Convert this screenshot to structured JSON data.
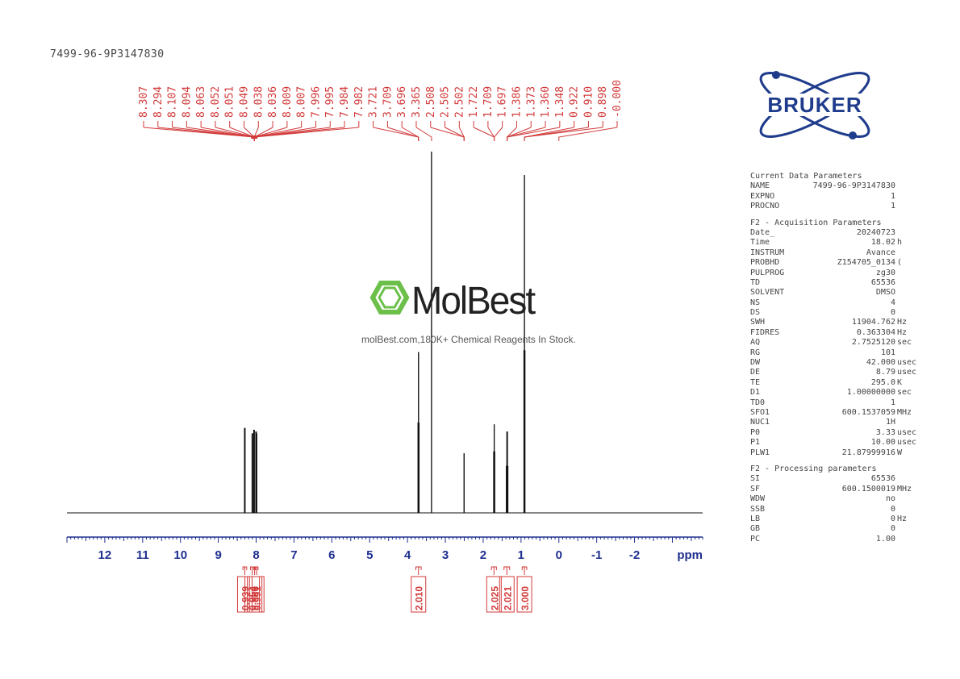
{
  "title": "7499-96-9P3147830",
  "watermark": {
    "brand": "MolBest",
    "tagline": "molBest.com,180K+ Chemical Reagents In Stock."
  },
  "logo": {
    "text": "BRUKER",
    "color": "#1f3c8c",
    "accent": "#2a4fa8"
  },
  "colors": {
    "peak_label": "#d23a3a",
    "axis": "#1f2f8f",
    "trace": "#111111"
  },
  "parameters": {
    "current": {
      "heading": "Current Data Parameters",
      "rows": [
        {
          "name": "NAME",
          "value": "7499-96-9P3147830",
          "unit": ""
        },
        {
          "name": "EXPNO",
          "value": "1",
          "unit": ""
        },
        {
          "name": "PROCNO",
          "value": "1",
          "unit": ""
        }
      ]
    },
    "acquisition": {
      "heading": "F2 - Acquisition Parameters",
      "rows": [
        {
          "name": "Date_",
          "value": "20240723",
          "unit": ""
        },
        {
          "name": "Time",
          "value": "18.02",
          "unit": "h"
        },
        {
          "name": "INSTRUM",
          "value": "Avance",
          "unit": ""
        },
        {
          "name": "PROBHD",
          "value": "Z154705_0134",
          "unit": "("
        },
        {
          "name": "PULPROG",
          "value": "zg30",
          "unit": ""
        },
        {
          "name": "TD",
          "value": "65536",
          "unit": ""
        },
        {
          "name": "SOLVENT",
          "value": "DMSO",
          "unit": ""
        },
        {
          "name": "NS",
          "value": "4",
          "unit": ""
        },
        {
          "name": "DS",
          "value": "0",
          "unit": ""
        },
        {
          "name": "SWH",
          "value": "11904.762",
          "unit": "Hz"
        },
        {
          "name": "FIDRES",
          "value": "0.363304",
          "unit": "Hz"
        },
        {
          "name": "AQ",
          "value": "2.7525120",
          "unit": "sec"
        },
        {
          "name": "RG",
          "value": "101",
          "unit": ""
        },
        {
          "name": "DW",
          "value": "42.000",
          "unit": "usec"
        },
        {
          "name": "DE",
          "value": "8.79",
          "unit": "usec"
        },
        {
          "name": "TE",
          "value": "295.0",
          "unit": "K"
        },
        {
          "name": "D1",
          "value": "1.00000000",
          "unit": "sec"
        },
        {
          "name": "TD0",
          "value": "1",
          "unit": ""
        },
        {
          "name": "SFO1",
          "value": "600.1537059",
          "unit": "MHz"
        },
        {
          "name": "NUC1",
          "value": "1H",
          "unit": ""
        },
        {
          "name": "P0",
          "value": "3.33",
          "unit": "usec"
        },
        {
          "name": "P1",
          "value": "10.00",
          "unit": "usec"
        },
        {
          "name": "PLW1",
          "value": "21.87999916",
          "unit": "W"
        }
      ]
    },
    "processing": {
      "heading": "F2 - Processing parameters",
      "rows": [
        {
          "name": "SI",
          "value": "65536",
          "unit": ""
        },
        {
          "name": "SF",
          "value": "600.1500019",
          "unit": "MHz"
        },
        {
          "name": "WDW",
          "value": "no",
          "unit": ""
        },
        {
          "name": "SSB",
          "value": "0",
          "unit": ""
        },
        {
          "name": "LB",
          "value": "0",
          "unit": "Hz"
        },
        {
          "name": "GB",
          "value": "0",
          "unit": ""
        },
        {
          "name": "PC",
          "value": "1.00",
          "unit": ""
        }
      ]
    }
  },
  "chart_data": {
    "type": "line",
    "title": "7499-96-9P3147830",
    "xlabel": "ppm",
    "xlim": [
      13.0,
      -3.8
    ],
    "x_ticks": [
      12,
      11,
      10,
      9,
      8,
      7,
      6,
      5,
      4,
      3,
      2,
      1,
      0,
      -1,
      -2
    ],
    "x_tick_labels": [
      "12",
      "11",
      "10",
      "9",
      "8",
      "7",
      "6",
      "5",
      "4",
      "3",
      "2",
      "1",
      "0",
      "-1",
      "-2"
    ],
    "ylim": [
      0,
      1.0
    ],
    "peak_labels": [
      "8.307",
      "8.294",
      "8.107",
      "8.094",
      "8.063",
      "8.052",
      "8.051",
      "8.049",
      "8.038",
      "8.036",
      "8.009",
      "8.007",
      "7.996",
      "7.995",
      "7.984",
      "7.982",
      "3.721",
      "3.709",
      "3.696",
      "3.365",
      "2.508",
      "2.505",
      "2.502",
      "1.722",
      "1.709",
      "1.697",
      "1.386",
      "1.373",
      "1.360",
      "1.348",
      "0.922",
      "0.910",
      "0.898",
      "-0.000"
    ],
    "peak_groups": [
      {
        "from": 0,
        "to": 15,
        "ppm": 8.05
      },
      {
        "from": 16,
        "to": 18,
        "ppm": 3.71
      },
      {
        "from": 19,
        "to": 19,
        "ppm": 3.365
      },
      {
        "from": 20,
        "to": 22,
        "ppm": 2.505
      },
      {
        "from": 23,
        "to": 25,
        "ppm": 1.709
      },
      {
        "from": 26,
        "to": 29,
        "ppm": 1.367
      },
      {
        "from": 30,
        "to": 32,
        "ppm": 0.91
      },
      {
        "from": 33,
        "to": 33,
        "ppm": 0.0
      }
    ],
    "peaks": [
      {
        "ppm": 8.307,
        "h": 0.235
      },
      {
        "ppm": 8.294,
        "h": 0.235
      },
      {
        "ppm": 8.107,
        "h": 0.22
      },
      {
        "ppm": 8.094,
        "h": 0.22
      },
      {
        "ppm": 8.063,
        "h": 0.23
      },
      {
        "ppm": 8.049,
        "h": 0.23
      },
      {
        "ppm": 8.009,
        "h": 0.225
      },
      {
        "ppm": 7.996,
        "h": 0.225
      },
      {
        "ppm": 7.984,
        "h": 0.22
      },
      {
        "ppm": 3.721,
        "h": 0.25
      },
      {
        "ppm": 3.709,
        "h": 0.445
      },
      {
        "ppm": 3.696,
        "h": 0.25
      },
      {
        "ppm": 3.365,
        "h": 1.0
      },
      {
        "ppm": 2.505,
        "h": 0.165
      },
      {
        "ppm": 1.722,
        "h": 0.17
      },
      {
        "ppm": 1.709,
        "h": 0.245
      },
      {
        "ppm": 1.697,
        "h": 0.17
      },
      {
        "ppm": 1.386,
        "h": 0.13
      },
      {
        "ppm": 1.373,
        "h": 0.225
      },
      {
        "ppm": 1.36,
        "h": 0.225
      },
      {
        "ppm": 1.348,
        "h": 0.13
      },
      {
        "ppm": 0.922,
        "h": 0.45
      },
      {
        "ppm": 0.91,
        "h": 0.935
      },
      {
        "ppm": 0.898,
        "h": 0.45
      }
    ],
    "integrals": [
      {
        "from": 8.35,
        "to": 8.25,
        "label": "0.939"
      },
      {
        "from": 8.15,
        "to": 8.06,
        "label": "0.954"
      },
      {
        "from": 8.06,
        "to": 8.02,
        "label": "0.986"
      },
      {
        "from": 8.02,
        "to": 7.95,
        "label": "0.991"
      },
      {
        "from": 3.78,
        "to": 3.64,
        "label": "2.010"
      },
      {
        "from": 1.78,
        "to": 1.65,
        "label": "2.025"
      },
      {
        "from": 1.45,
        "to": 1.3,
        "label": "2.021"
      },
      {
        "from": 0.97,
        "to": 0.85,
        "label": "3.000"
      }
    ]
  }
}
